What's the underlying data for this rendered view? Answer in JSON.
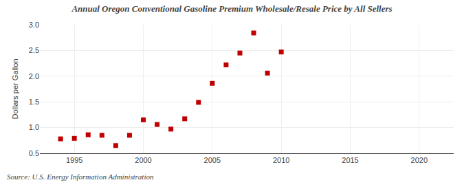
{
  "chart_data": {
    "type": "scatter",
    "title": "Annual Oregon Conventional Gasoline Premium Wholesale/Resale Price by All Sellers",
    "ylabel": "Dollars per Gallon",
    "annotations": [
      "Source: U.S. Energy Information Administration"
    ],
    "x": [
      1994,
      1995,
      1996,
      1997,
      1998,
      1999,
      2000,
      2001,
      2002,
      2003,
      2004,
      2005,
      2006,
      2007,
      2008,
      2009,
      2010
    ],
    "values": [
      0.78,
      0.79,
      0.86,
      0.85,
      0.65,
      0.85,
      1.15,
      1.06,
      0.97,
      1.17,
      1.49,
      1.86,
      2.22,
      2.45,
      2.84,
      2.06,
      2.47
    ],
    "xlim": [
      1992.5,
      2022.5
    ],
    "ylim": [
      0.5,
      3.0
    ],
    "xticks": [
      1995,
      2000,
      2005,
      2010,
      2015,
      2020
    ],
    "yticks": [
      0.5,
      {
        "value": 1.0,
        "label": "1.0"
      },
      1.5,
      {
        "value": 2.0,
        "label": "2.0"
      },
      2.5,
      {
        "value": 3.0,
        "label": "3.0"
      }
    ],
    "color": "#c00000",
    "marker": "square",
    "grid": true
  }
}
